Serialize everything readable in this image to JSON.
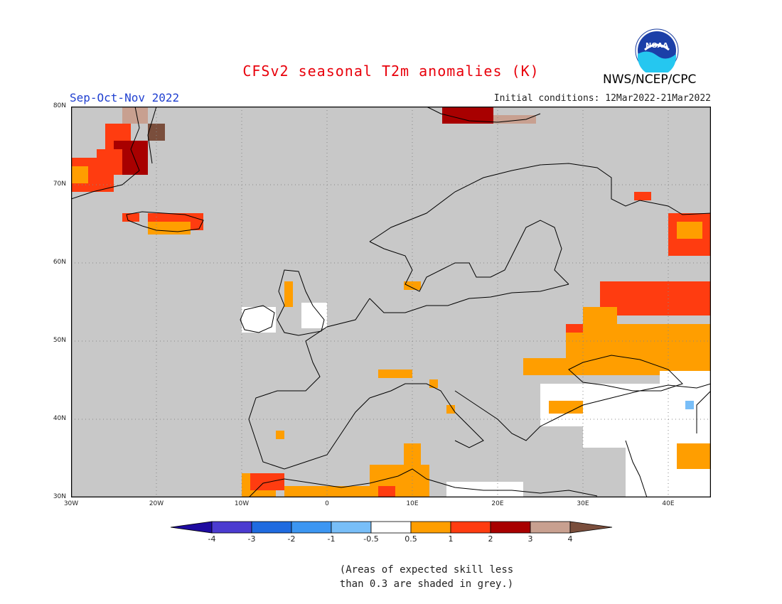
{
  "header": {
    "title": "CFSv2 seasonal T2m anomalies (K)",
    "season": "Sep-Oct-Nov 2022",
    "initial_conditions": "Initial conditions: 12Mar2022-21Mar2022",
    "organization": "NWS/NCEP/CPC",
    "logo_text": "NOAA"
  },
  "map": {
    "region": "Europe",
    "lon_range": [
      -30,
      45
    ],
    "lat_range": [
      30,
      80
    ],
    "lat_labels": [
      "80N",
      "70N",
      "60N",
      "50N",
      "40N",
      "30N"
    ],
    "lon_labels": [
      "30W",
      "20W",
      "10W",
      "0",
      "10E",
      "20E",
      "30E",
      "40E"
    ],
    "colors": {
      "grey_skill": "#c8c8c8",
      "gridline": "#888888",
      "coastline": "#000000"
    }
  },
  "legend": {
    "labels": [
      "-4",
      "-3",
      "-2",
      "-1",
      "-0.5",
      "0.5",
      "1",
      "2",
      "3",
      "4"
    ],
    "colors": [
      "#1e0ba0",
      "#4b3bd0",
      "#1f6be0",
      "#3c96f2",
      "#78bef8",
      "#ffffff",
      "#ff9e00",
      "#ff3c10",
      "#a80000",
      "#c8a090",
      "#7a4e3c"
    ]
  },
  "footnote": {
    "line1": "(Areas of expected skill less",
    "line2": "than 0.3 are shaded in grey.)"
  }
}
